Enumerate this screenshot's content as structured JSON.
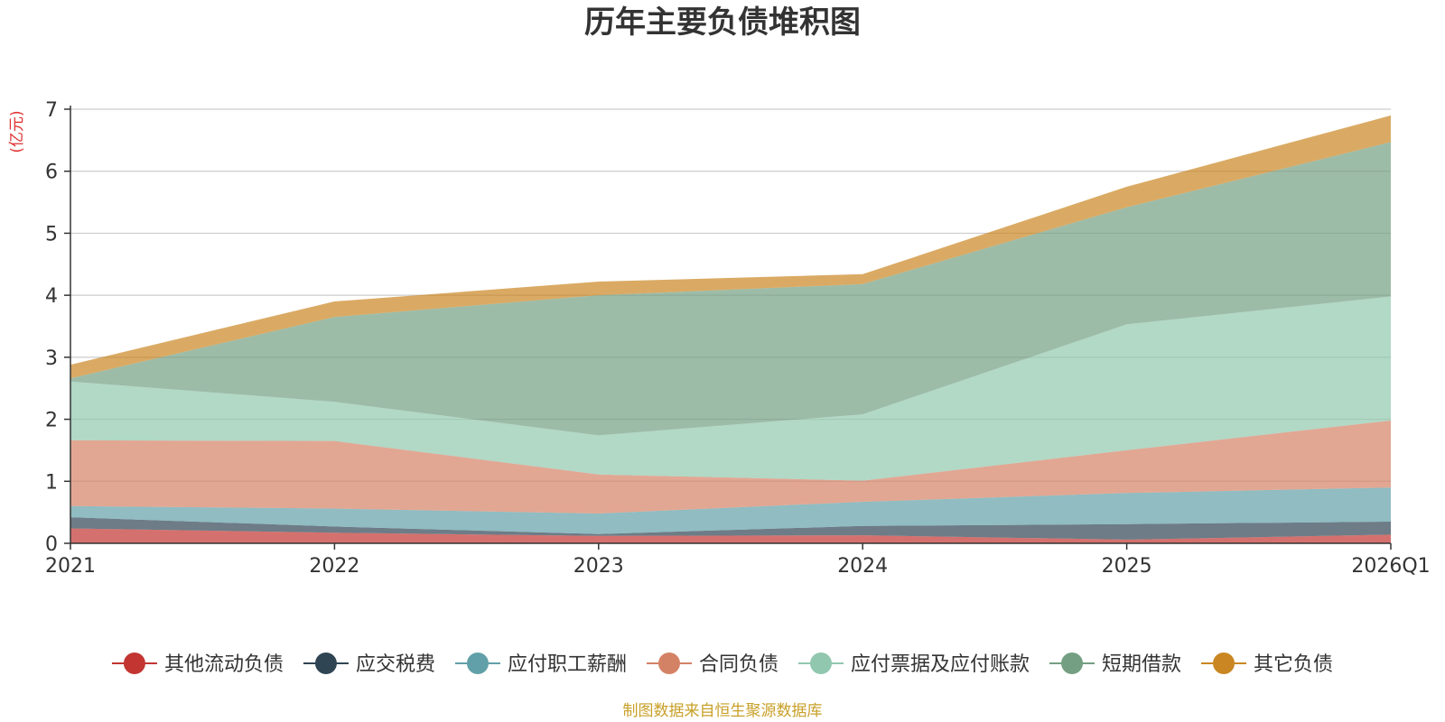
{
  "chart_data": {
    "type": "area",
    "stacked": true,
    "title": "历年主要负债堆积图",
    "unit_label": "(亿元)",
    "x": [
      "2021",
      "2022",
      "2023",
      "2024",
      "2025",
      "2026Q1"
    ],
    "ylim": [
      0,
      7
    ],
    "yticks": [
      0,
      1,
      2,
      3,
      4,
      5,
      6,
      7
    ],
    "grid": true,
    "legend_position": "bottom",
    "series": [
      {
        "name": "其他流动负债",
        "color": "#c23531",
        "values": [
          0.24,
          0.17,
          0.12,
          0.13,
          0.06,
          0.14
        ]
      },
      {
        "name": "应交税费",
        "color": "#2f4554",
        "values": [
          0.18,
          0.1,
          0.03,
          0.15,
          0.25,
          0.21
        ]
      },
      {
        "name": "应付职工薪酬",
        "color": "#61a0a8",
        "values": [
          0.18,
          0.29,
          0.33,
          0.39,
          0.5,
          0.55
        ]
      },
      {
        "name": "合同负债",
        "color": "#d48265",
        "values": [
          1.06,
          1.09,
          0.63,
          0.34,
          0.69,
          1.08
        ]
      },
      {
        "name": "应付票据及应付账款",
        "color": "#91c7ae",
        "values": [
          0.95,
          0.63,
          0.63,
          1.07,
          2.03,
          2.0
        ]
      },
      {
        "name": "短期借款",
        "color": "#749f83",
        "values": [
          0.05,
          1.37,
          2.26,
          2.1,
          1.89,
          2.49
        ]
      },
      {
        "name": "其它负债",
        "color": "#ca8622",
        "values": [
          0.22,
          0.25,
          0.22,
          0.16,
          0.33,
          0.43
        ]
      }
    ]
  },
  "source_note": "制图数据来自恒生聚源数据库"
}
